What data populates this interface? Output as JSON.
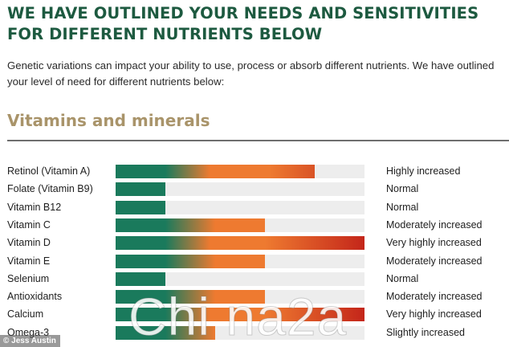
{
  "heading": "WE HAVE OUTLINED YOUR NEEDS AND SENSITIVITIES FOR DIFFERENT NUTRIENTS BELOW",
  "intro": "Genetic variations can impact your ability to use, process or absorb different nutrients. We have outlined your level of need for different nutrients below:",
  "section_title": "Vitamins and minerals",
  "colors": {
    "heading": "#1d5a40",
    "section_title": "#a9946a",
    "bar_green": "#1a7a5c",
    "bar_orange": "#ee7a30",
    "bar_red": "#c4261a",
    "track": "#ededed"
  },
  "nutrients": [
    {
      "name": "Retinol (Vitamin A)",
      "level": "Highly increased",
      "fill": 0.8
    },
    {
      "name": "Folate (Vitamin B9)",
      "level": "Normal",
      "fill": 0.2
    },
    {
      "name": "Vitamin B12",
      "level": "Normal",
      "fill": 0.2
    },
    {
      "name": "Vitamin C",
      "level": "Moderately increased",
      "fill": 0.6
    },
    {
      "name": "Vitamin D",
      "level": "Very highly increased",
      "fill": 1.0
    },
    {
      "name": "Vitamin E",
      "level": "Moderately increased",
      "fill": 0.6
    },
    {
      "name": "Selenium",
      "level": "Normal",
      "fill": 0.2
    },
    {
      "name": "Antioxidants",
      "level": "Moderately increased",
      "fill": 0.6
    },
    {
      "name": "Calcium",
      "level": "Very highly increased",
      "fill": 1.0
    },
    {
      "name": "Omega-3",
      "level": "Slightly increased",
      "fill": 0.4
    }
  ],
  "watermark": "Chi na2a",
  "credit": "© Jess Austin"
}
